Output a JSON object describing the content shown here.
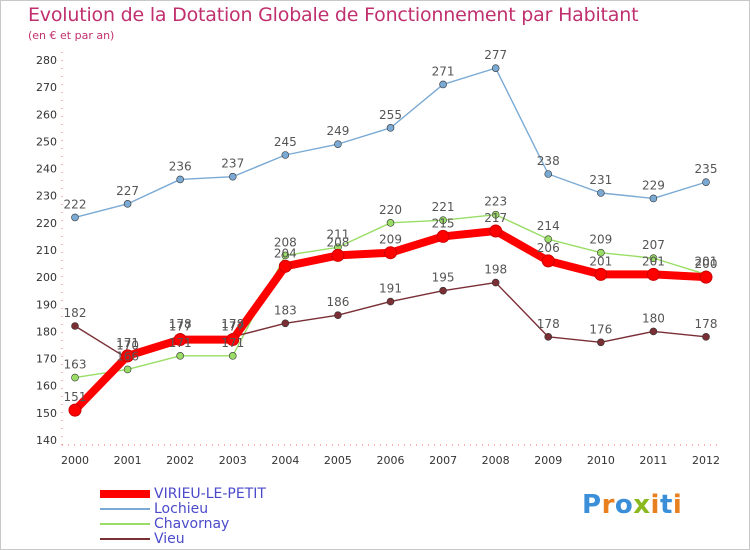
{
  "title": "Evolution de la Dotation Globale de Fonctionnement par Habitant",
  "subtitle": "(en € et par an)",
  "logo": {
    "text": "Proxiti",
    "letters": [
      "P",
      "r",
      "o",
      "x",
      "i",
      "t",
      "i"
    ],
    "colors": [
      "#3a8fd8",
      "#e8801f",
      "#3a8fd8",
      "#8ab81f",
      "#e8801f",
      "#3a8fd8",
      "#e8801f"
    ]
  },
  "chart_data": {
    "type": "line",
    "x": [
      "2000",
      "2001",
      "2002",
      "2003",
      "2004",
      "2005",
      "2006",
      "2007",
      "2008",
      "2009",
      "2010",
      "2011",
      "2012"
    ],
    "ylim": [
      140,
      280
    ],
    "yticks": [
      140,
      150,
      160,
      170,
      180,
      190,
      200,
      210,
      220,
      230,
      240,
      250,
      260,
      270,
      280
    ],
    "grid": false,
    "legend_position": "bottom-left",
    "series": [
      {
        "name": "VIRIEU-LE-PETIT",
        "color": "#ff0000",
        "values": [
          151,
          171,
          177,
          177,
          204,
          208,
          209,
          215,
          217,
          206,
          201,
          201,
          200
        ]
      },
      {
        "name": "Lochieu",
        "color": "#7aaad4",
        "values": [
          222,
          227,
          236,
          237,
          245,
          249,
          255,
          271,
          277,
          238,
          231,
          229,
          235
        ]
      },
      {
        "name": "Chavornay",
        "color": "#99dd66",
        "values": [
          163,
          166,
          171,
          171,
          208,
          211,
          220,
          221,
          223,
          214,
          209,
          207,
          201
        ]
      },
      {
        "name": "Vieu",
        "color": "#7a2f35",
        "values": [
          182,
          170,
          178,
          178,
          183,
          186,
          191,
          195,
          198,
          178,
          176,
          180,
          178
        ]
      }
    ]
  }
}
